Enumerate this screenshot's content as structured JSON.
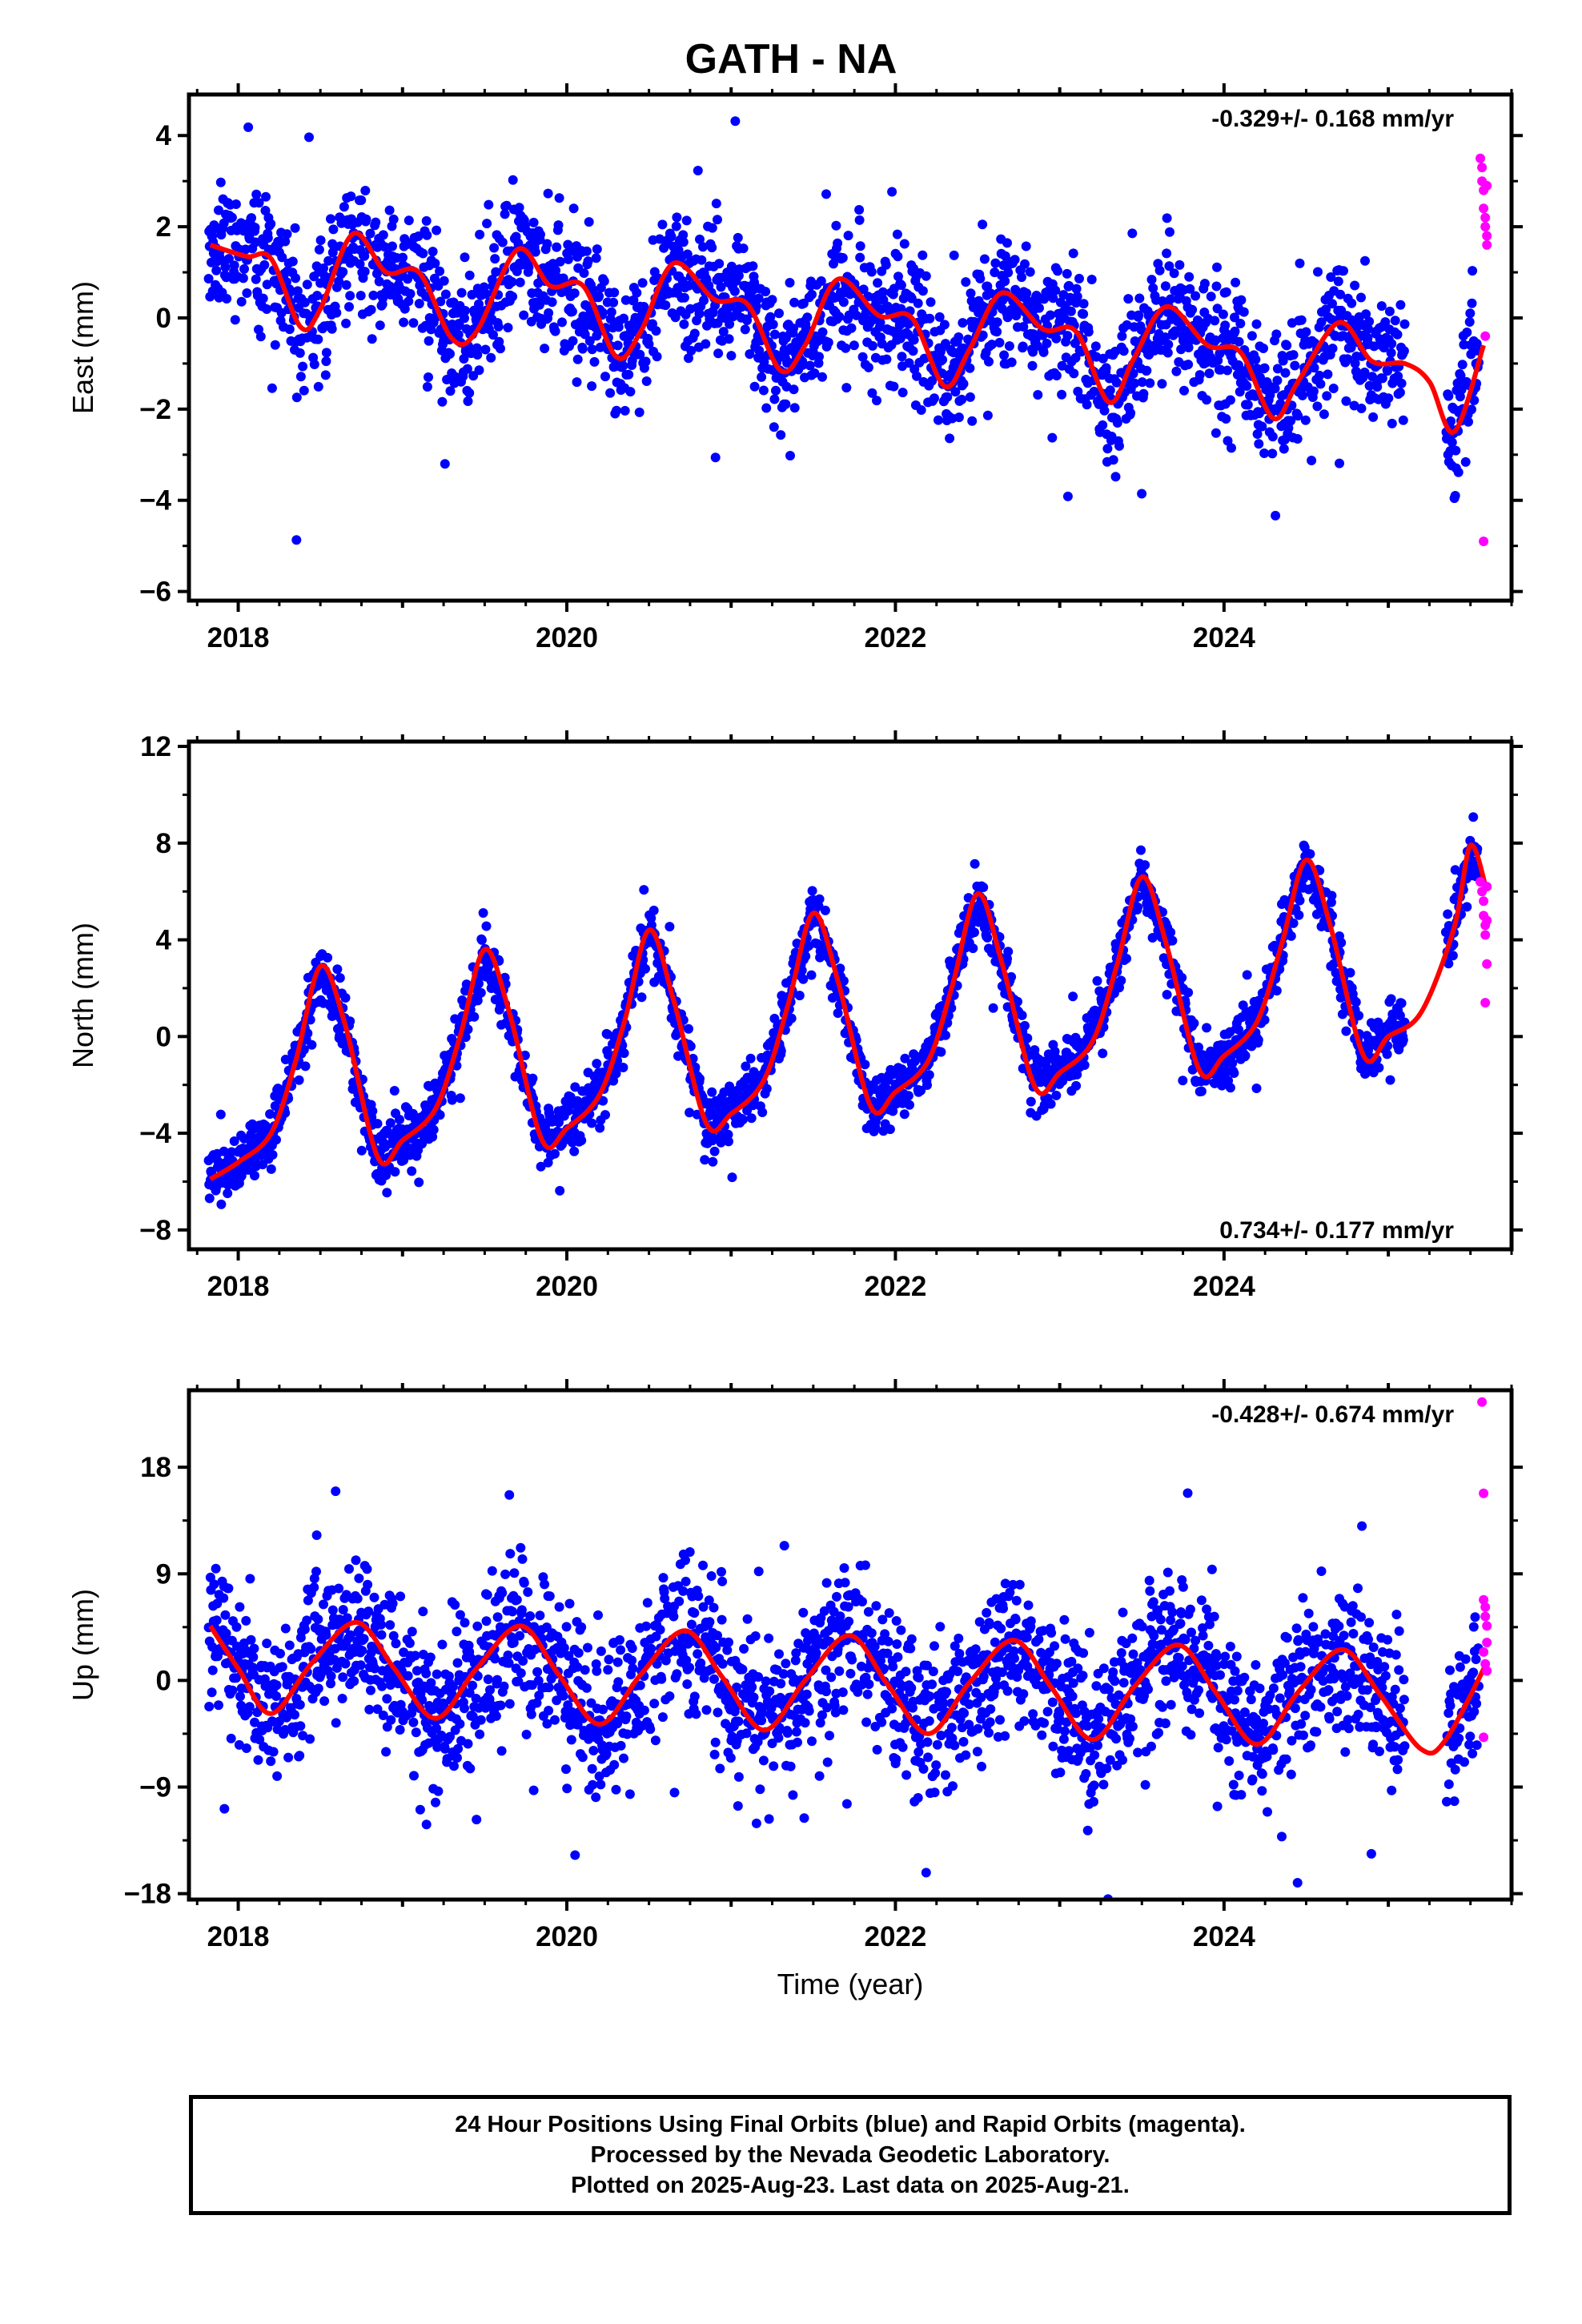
{
  "page": {
    "title": "GATH - NA"
  },
  "footer": {
    "line1": "24 Hour Positions Using Final Orbits (blue) and Rapid Orbits (magenta).",
    "line2": "Processed by the Nevada Geodetic Laboratory.",
    "line3": "Plotted on 2025-Aug-23. Last data on 2025-Aug-21."
  },
  "colors": {
    "final_orbits": "#0000ff",
    "rapid_orbits": "#ff00ff",
    "model_fit": "#ff0000",
    "frame": "#000000"
  },
  "chart_data": [
    {
      "type": "scatter",
      "ylabel": "East (mm)",
      "xlabel": "",
      "xlim": [
        2017.7,
        2025.75
      ],
      "ylim": [
        -6.2,
        4.9
      ],
      "yticks": [
        4,
        2,
        0,
        -2,
        -4,
        -6
      ],
      "ytick_labels": [
        "4",
        "2",
        "0",
        "−2",
        "−4",
        "−6"
      ],
      "xticks": [
        2018,
        2020,
        2022,
        2024
      ],
      "xtick_labels": [
        "2018",
        "2020",
        "2022",
        "2024"
      ],
      "rate_label": "-0.329+/- 0.168 mm/yr",
      "rate_position": "top-right",
      "series": [
        {
          "kind": "model",
          "color": "#ff0000",
          "x": [
            2017.83,
            2018.05,
            2018.2,
            2018.38,
            2018.5,
            2018.7,
            2018.9,
            2019.1,
            2019.3,
            2019.45,
            2019.7,
            2019.9,
            2020.1,
            2020.3,
            2020.45,
            2020.65,
            2020.9,
            2021.1,
            2021.3,
            2021.45,
            2021.65,
            2021.9,
            2022.1,
            2022.3,
            2022.45,
            2022.65,
            2022.9,
            2023.1,
            2023.3,
            2023.45,
            2023.65,
            2023.9,
            2024.1,
            2024.3,
            2024.45,
            2024.7,
            2024.9,
            2025.1,
            2025.25,
            2025.4,
            2025.58
          ],
          "y": [
            1.6,
            1.35,
            1.3,
            -0.2,
            0.2,
            1.85,
            1.0,
            1.0,
            -0.45,
            -0.3,
            1.5,
            0.7,
            0.7,
            -0.85,
            -0.3,
            1.2,
            0.4,
            0.3,
            -1.15,
            -0.6,
            0.85,
            0.05,
            0.0,
            -1.5,
            -0.7,
            0.55,
            -0.25,
            -0.3,
            -1.85,
            -0.9,
            0.25,
            -0.6,
            -0.75,
            -2.2,
            -1.4,
            -0.1,
            -0.95,
            -1.0,
            -1.4,
            -2.5,
            -0.6
          ]
        },
        {
          "kind": "final",
          "color": "#0000ff",
          "amp_seasonal": 1.1,
          "amp_semiannual": 0.6,
          "noise": 0.95,
          "x_start": 2017.82,
          "x_end": 2025.1,
          "offset": 1.45,
          "rate": -0.329,
          "gap_start": 2025.1,
          "gap_end": 2025.35,
          "resume_start": 2025.35,
          "resume_end": 2025.55
        },
        {
          "kind": "rapid",
          "color": "#ff00ff",
          "x": [
            2025.56,
            2025.57,
            2025.57,
            2025.58,
            2025.58,
            2025.59,
            2025.59,
            2025.6,
            2025.6,
            2025.59,
            2025.58,
            2025.6
          ],
          "y": [
            3.5,
            3.3,
            3.0,
            2.8,
            2.4,
            2.2,
            2.0,
            1.8,
            1.6,
            -0.4,
            -4.9,
            2.9
          ]
        }
      ]
    },
    {
      "type": "scatter",
      "ylabel": "North (mm)",
      "xlabel": "",
      "xlim": [
        2017.7,
        2025.75
      ],
      "ylim": [
        -8.8,
        12.2
      ],
      "yticks": [
        12,
        8,
        4,
        0,
        -4,
        -8
      ],
      "ytick_labels": [
        "12",
        "8",
        "4",
        "0",
        "−4",
        "−8"
      ],
      "xticks": [
        2018,
        2020,
        2022,
        2024
      ],
      "xtick_labels": [
        "2018",
        "2020",
        "2022",
        "2024"
      ],
      "rate_label": "0.734+/- 0.177 mm/yr",
      "rate_position": "bottom-right",
      "series": [
        {
          "kind": "model",
          "color": "#ff0000",
          "x": [
            2017.83,
            2018.0,
            2018.2,
            2018.35,
            2018.5,
            2018.65,
            2018.85,
            2019.0,
            2019.2,
            2019.35,
            2019.5,
            2019.65,
            2019.85,
            2020.0,
            2020.2,
            2020.35,
            2020.5,
            2020.65,
            2020.85,
            2021.0,
            2021.2,
            2021.35,
            2021.5,
            2021.65,
            2021.85,
            2022.0,
            2022.2,
            2022.35,
            2022.5,
            2022.65,
            2022.85,
            2023.0,
            2023.2,
            2023.35,
            2023.5,
            2023.65,
            2023.85,
            2024.0,
            2024.2,
            2024.35,
            2024.5,
            2024.65,
            2024.85,
            2025.0,
            2025.2,
            2025.4,
            2025.5,
            2025.6
          ],
          "y": [
            -5.9,
            -5.2,
            -4.0,
            -1.0,
            2.9,
            0.5,
            -5.0,
            -4.3,
            -3.0,
            0.0,
            3.6,
            1.0,
            -4.3,
            -3.8,
            -2.4,
            0.6,
            4.4,
            1.5,
            -3.6,
            -3.2,
            -1.8,
            1.4,
            5.1,
            2.3,
            -2.9,
            -2.3,
            -1.0,
            2.2,
            5.9,
            3.0,
            -2.1,
            -1.5,
            -0.2,
            3.0,
            6.6,
            3.8,
            -1.4,
            -0.8,
            0.6,
            3.8,
            7.3,
            4.5,
            -0.8,
            0.0,
            1.0,
            4.5,
            7.9,
            6.0
          ]
        },
        {
          "kind": "final",
          "color": "#0000ff",
          "amp_seasonal": 4.5,
          "amp_semiannual": 0.9,
          "noise": 0.8,
          "x_start": 2017.82,
          "x_end": 2025.1,
          "offset": -1.4,
          "rate": 0.734,
          "gap_start": 2025.1,
          "gap_end": 2025.35,
          "resume_start": 2025.35,
          "resume_end": 2025.55
        },
        {
          "kind": "rapid",
          "color": "#ff00ff",
          "x": [
            2025.56,
            2025.57,
            2025.58,
            2025.58,
            2025.59,
            2025.59,
            2025.6,
            2025.6,
            2025.59,
            2025.6
          ],
          "y": [
            6.4,
            6.0,
            5.6,
            5.0,
            4.6,
            4.2,
            4.8,
            3.0,
            1.4,
            6.2
          ]
        }
      ]
    },
    {
      "type": "scatter",
      "ylabel": "Up (mm)",
      "xlabel": "Time (year)",
      "xlim": [
        2017.7,
        2025.75
      ],
      "ylim": [
        -18.5,
        24.5
      ],
      "yticks": [
        18,
        9,
        0,
        -9,
        -18
      ],
      "ytick_labels": [
        "18",
        "9",
        "0",
        "−9",
        "−18"
      ],
      "xticks": [
        2018,
        2020,
        2022,
        2024
      ],
      "xtick_labels": [
        "2018",
        "2020",
        "2022",
        "2024"
      ],
      "rate_label": "-0.428+/- 0.674 mm/yr",
      "rate_position": "top-right",
      "series": [
        {
          "kind": "model",
          "color": "#ff0000",
          "x": [
            2017.83,
            2018.0,
            2018.2,
            2018.45,
            2018.72,
            2018.95,
            2019.2,
            2019.45,
            2019.72,
            2019.95,
            2020.2,
            2020.45,
            2020.72,
            2020.95,
            2021.2,
            2021.45,
            2021.72,
            2021.95,
            2022.2,
            2022.45,
            2022.72,
            2022.95,
            2023.2,
            2023.45,
            2023.72,
            2023.95,
            2024.2,
            2024.45,
            2024.72,
            2024.95,
            2025.2,
            2025.35,
            2025.6
          ],
          "y": [
            4.6,
            1.0,
            -2.8,
            1.5,
            4.9,
            1.0,
            -3.2,
            1.0,
            4.6,
            0.5,
            -3.7,
            0.5,
            4.2,
            0.2,
            -4.2,
            0.0,
            3.8,
            -0.3,
            -4.5,
            -0.2,
            3.4,
            -0.6,
            -5.0,
            -0.6,
            3.0,
            -1.0,
            -5.4,
            -1.0,
            2.6,
            -1.2,
            -5.8,
            -5.0,
            1.5
          ]
        },
        {
          "kind": "final",
          "color": "#0000ff",
          "amp_seasonal": 4.2,
          "amp_semiannual": 0.5,
          "noise": 4.2,
          "x_start": 2017.82,
          "x_end": 2025.1,
          "offset": 0.8,
          "rate": -0.428,
          "gap_start": 2025.1,
          "gap_end": 2025.35,
          "resume_start": 2025.35,
          "resume_end": 2025.55
        },
        {
          "kind": "rapid",
          "color": "#ff00ff",
          "x": [
            2025.57,
            2025.58,
            2025.58,
            2025.59,
            2025.59,
            2025.6,
            2025.6,
            2025.58,
            2025.59,
            2025.6,
            2025.58
          ],
          "y": [
            23.5,
            15.8,
            6.8,
            6.2,
            5.4,
            4.6,
            3.2,
            2.4,
            1.4,
            0.8,
            -4.8
          ]
        }
      ]
    }
  ]
}
